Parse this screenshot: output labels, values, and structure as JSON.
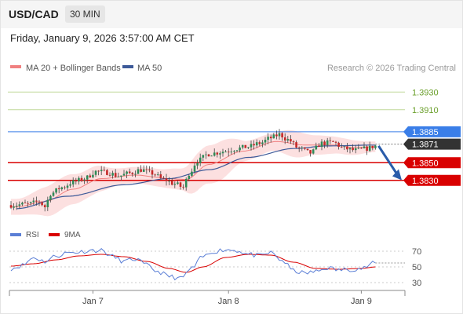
{
  "header": {
    "pair": "USD/CAD",
    "timeframe": "30 MIN"
  },
  "datetime": "Friday, January 9, 2026 3:57:00 AM CET",
  "legend": {
    "items": [
      {
        "label": "MA 20 + Bollinger Bands",
        "color": "#f08080"
      },
      {
        "label": "MA 50",
        "color": "#3d5a99"
      }
    ],
    "credit": "Research © 2026 Trading Central"
  },
  "colors": {
    "resistance": "#99c25e",
    "pivot": "#3a7ee8",
    "support": "#d90000",
    "candle_up": "#2e8b57",
    "candle_down": "#c62828",
    "current": "#333333",
    "arrow": "#2a5caa"
  },
  "chart_data": [
    {
      "type": "candlestick",
      "ylim": [
        1.3788,
        1.3948
      ],
      "x_ticks": [
        {
          "label": "Jan 7",
          "index": 29
        },
        {
          "label": "Jan 8",
          "index": 77
        },
        {
          "label": "Jan 9",
          "index": 124
        }
      ],
      "levels": [
        {
          "value": 1.393,
          "label": "1.3930",
          "kind": "resistance"
        },
        {
          "value": 1.391,
          "label": "1.3910",
          "kind": "resistance"
        },
        {
          "value": 1.3885,
          "label": "1.3885",
          "kind": "pivot"
        },
        {
          "value": 1.3871,
          "label": "1.3871",
          "kind": "current"
        },
        {
          "value": 1.385,
          "label": "1.3850",
          "kind": "support"
        },
        {
          "value": 1.383,
          "label": "1.3830",
          "kind": "support"
        }
      ],
      "projection": {
        "from": 1.3869,
        "to": 1.3832,
        "direction": "down"
      },
      "price_anchors": [
        [
          0,
          1.3802
        ],
        [
          6,
          1.3803
        ],
        [
          10,
          1.3806
        ],
        [
          12,
          1.38
        ],
        [
          14,
          1.3815
        ],
        [
          18,
          1.3822
        ],
        [
          22,
          1.3828
        ],
        [
          26,
          1.3832
        ],
        [
          30,
          1.384
        ],
        [
          34,
          1.3839
        ],
        [
          38,
          1.3835
        ],
        [
          42,
          1.3838
        ],
        [
          46,
          1.3842
        ],
        [
          50,
          1.3838
        ],
        [
          54,
          1.3831
        ],
        [
          58,
          1.3826
        ],
        [
          61,
          1.3822
        ],
        [
          63,
          1.3838
        ],
        [
          66,
          1.3852
        ],
        [
          70,
          1.386
        ],
        [
          76,
          1.3863
        ],
        [
          80,
          1.3866
        ],
        [
          84,
          1.3868
        ],
        [
          88,
          1.3872
        ],
        [
          92,
          1.3878
        ],
        [
          95,
          1.3882
        ],
        [
          98,
          1.3876
        ],
        [
          102,
          1.3866
        ],
        [
          106,
          1.3861
        ],
        [
          110,
          1.3872
        ],
        [
          114,
          1.3873
        ],
        [
          118,
          1.3866
        ],
        [
          122,
          1.3864
        ],
        [
          126,
          1.3866
        ],
        [
          129,
          1.3869
        ]
      ],
      "ma50_anchors": [
        [
          2,
          1.3798
        ],
        [
          20,
          1.3812
        ],
        [
          40,
          1.3825
        ],
        [
          56,
          1.3832
        ],
        [
          70,
          1.3842
        ],
        [
          84,
          1.3856
        ],
        [
          100,
          1.3866
        ],
        [
          112,
          1.3869
        ],
        [
          129,
          1.387
        ]
      ],
      "ma20_anchors": [
        [
          2,
          1.38
        ],
        [
          12,
          1.3806
        ],
        [
          22,
          1.382
        ],
        [
          32,
          1.3832
        ],
        [
          44,
          1.3836
        ],
        [
          56,
          1.3832
        ],
        [
          62,
          1.3831
        ],
        [
          70,
          1.3848
        ],
        [
          82,
          1.3863
        ],
        [
          94,
          1.3874
        ],
        [
          104,
          1.387
        ],
        [
          114,
          1.387
        ],
        [
          122,
          1.3867
        ],
        [
          129,
          1.3868
        ]
      ],
      "band_width_anchors": [
        [
          2,
          0.0009
        ],
        [
          16,
          0.0018
        ],
        [
          28,
          0.0016
        ],
        [
          40,
          0.0009
        ],
        [
          52,
          0.001
        ],
        [
          60,
          0.0012
        ],
        [
          66,
          0.0021
        ],
        [
          74,
          0.0022
        ],
        [
          84,
          0.0011
        ],
        [
          92,
          0.001
        ],
        [
          100,
          0.0015
        ],
        [
          108,
          0.0011
        ],
        [
          118,
          0.0009
        ],
        [
          129,
          0.0006
        ]
      ],
      "candle_count": 130
    },
    {
      "type": "line",
      "name": "RSI",
      "series": [
        {
          "name": "RSI",
          "color": "#5b7fd6"
        },
        {
          "name": "9MA",
          "color": "#d90000"
        }
      ],
      "ylim": [
        20,
        80
      ],
      "y_ticks": [
        70,
        50,
        30
      ],
      "rsi_anchors": [
        [
          0,
          48
        ],
        [
          4,
          52
        ],
        [
          8,
          62
        ],
        [
          12,
          57
        ],
        [
          16,
          64
        ],
        [
          20,
          68
        ],
        [
          24,
          69
        ],
        [
          28,
          71
        ],
        [
          32,
          71
        ],
        [
          36,
          63
        ],
        [
          40,
          57
        ],
        [
          44,
          60
        ],
        [
          48,
          52
        ],
        [
          52,
          44
        ],
        [
          56,
          38
        ],
        [
          60,
          35
        ],
        [
          64,
          48
        ],
        [
          68,
          63
        ],
        [
          72,
          70
        ],
        [
          76,
          72
        ],
        [
          80,
          71
        ],
        [
          84,
          66
        ],
        [
          88,
          64
        ],
        [
          92,
          68
        ],
        [
          96,
          58
        ],
        [
          100,
          45
        ],
        [
          104,
          42
        ],
        [
          108,
          44
        ],
        [
          112,
          49
        ],
        [
          116,
          46
        ],
        [
          120,
          47
        ],
        [
          124,
          48
        ],
        [
          129,
          55
        ]
      ],
      "ma_anchors": [
        [
          0,
          51
        ],
        [
          8,
          54
        ],
        [
          16,
          59
        ],
        [
          24,
          64
        ],
        [
          32,
          66
        ],
        [
          40,
          63
        ],
        [
          48,
          57
        ],
        [
          56,
          48
        ],
        [
          62,
          43
        ],
        [
          68,
          50
        ],
        [
          76,
          62
        ],
        [
          84,
          66
        ],
        [
          92,
          65
        ],
        [
          100,
          56
        ],
        [
          108,
          48
        ],
        [
          116,
          47
        ],
        [
          124,
          48
        ],
        [
          129,
          50
        ]
      ],
      "current": 55
    }
  ]
}
